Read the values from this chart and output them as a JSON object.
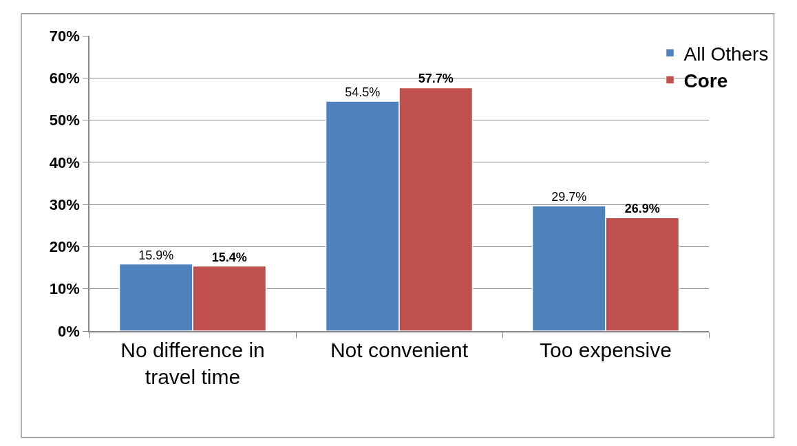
{
  "chart_data": {
    "type": "bar",
    "categories": [
      "No difference in\ntravel time",
      "Not convenient",
      "Too expensive"
    ],
    "series": [
      {
        "name": "All Others",
        "color": "#4f81bd",
        "values": [
          15.9,
          54.5,
          29.7
        ],
        "value_labels": [
          "15.9%",
          "54.5%",
          "29.7%"
        ]
      },
      {
        "name": "Core",
        "color": "#c0504d",
        "values": [
          15.4,
          57.7,
          26.9
        ],
        "value_labels": [
          "15.4%",
          "57.7%",
          "26.9%"
        ]
      }
    ],
    "ylim": [
      0,
      70
    ],
    "yticks": [
      {
        "value": 0,
        "label": "0%"
      },
      {
        "value": 10,
        "label": "10%"
      },
      {
        "value": 20,
        "label": "20%"
      },
      {
        "value": 30,
        "label": "30%"
      },
      {
        "value": 40,
        "label": "40%"
      },
      {
        "value": 50,
        "label": "50%"
      },
      {
        "value": 60,
        "label": "60%"
      },
      {
        "value": 70,
        "label": "70%"
      }
    ],
    "grid": "y",
    "legend": "top right"
  }
}
